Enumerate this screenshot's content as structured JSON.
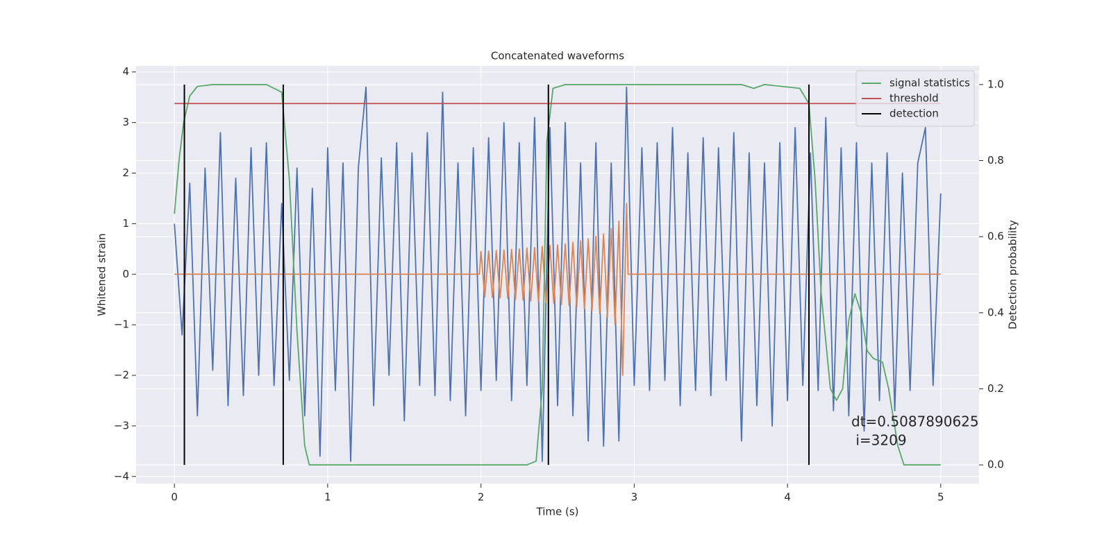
{
  "chart_data": {
    "type": "line",
    "title": "Concatenated waveforms",
    "xlabel": "Time (s)",
    "ylabel": "Whitened strain",
    "y2label": "Detection probability",
    "xlim": [
      -0.25,
      5.25
    ],
    "ylim": [
      -4.14,
      4.12
    ],
    "y2lim": [
      -0.049,
      1.049
    ],
    "xticks": [
      0,
      1,
      2,
      3,
      4,
      5
    ],
    "yticks": [
      {
        "value": -4,
        "label": "−4"
      },
      {
        "value": -3,
        "label": "−3"
      },
      {
        "value": -2,
        "label": "−2"
      },
      {
        "value": -1,
        "label": "−1"
      },
      0,
      1,
      2,
      3,
      4
    ],
    "y2ticks": [
      {
        "value": 0,
        "label": "0.0"
      },
      0.2,
      0.4,
      0.6,
      0.8,
      {
        "value": 1,
        "label": "1.0"
      }
    ],
    "grid": true,
    "legend": "upper right",
    "annotation": [
      "dt=0.5087890625",
      " i=3209"
    ],
    "series": [
      {
        "color": "#4c72b0",
        "axis": "y",
        "x": [
          0,
          0.05,
          0.1,
          0.15,
          0.2,
          0.25,
          0.3,
          0.35,
          0.4,
          0.45,
          0.5,
          0.55,
          0.6,
          0.65,
          0.7,
          0.75,
          0.8,
          0.85,
          0.9,
          0.95,
          1,
          1.05,
          1.1,
          1.15,
          1.2,
          1.25,
          1.3,
          1.35,
          1.4,
          1.45,
          1.5,
          1.55,
          1.6,
          1.65,
          1.7,
          1.75,
          1.8,
          1.85,
          1.9,
          1.95,
          2,
          2.05,
          2.1,
          2.15,
          2.2,
          2.25,
          2.3,
          2.35,
          2.4,
          2.45,
          2.5,
          2.55,
          2.6,
          2.65,
          2.7,
          2.75,
          2.8,
          2.85,
          2.9,
          2.95,
          3,
          3.05,
          3.1,
          3.15,
          3.2,
          3.25,
          3.3,
          3.35,
          3.4,
          3.45,
          3.5,
          3.55,
          3.6,
          3.65,
          3.7,
          3.75,
          3.8,
          3.85,
          3.9,
          3.95,
          4,
          4.05,
          4.1,
          4.15,
          4.2,
          4.25,
          4.3,
          4.35,
          4.4,
          4.45,
          4.5,
          4.55,
          4.6,
          4.65,
          4.7,
          4.75,
          4.8,
          4.85,
          4.9,
          4.95,
          5
        ],
        "values": [
          1.0,
          -1.2,
          1.8,
          -2.8,
          2.1,
          -1.9,
          2.8,
          -2.6,
          1.9,
          -2.4,
          2.5,
          -2.0,
          2.6,
          -2.2,
          1.4,
          -2.1,
          2.1,
          -2.8,
          1.7,
          -3.6,
          2.5,
          -2.3,
          2.2,
          -3.7,
          2.1,
          3.7,
          -2.6,
          2.3,
          -2.0,
          2.6,
          -2.9,
          2.4,
          -2.2,
          2.8,
          -2.4,
          3.6,
          -2.5,
          2.2,
          -2.8,
          2.5,
          -2.3,
          2.7,
          -2.1,
          3.0,
          -2.5,
          2.6,
          -2.2,
          3.1,
          -3.7,
          2.9,
          -2.6,
          3.0,
          -2.8,
          2.2,
          -3.3,
          2.6,
          -3.4,
          2.2,
          -3.3,
          3.7,
          -2.2,
          2.5,
          -2.3,
          2.6,
          -2.1,
          2.9,
          -2.6,
          2.4,
          -2.3,
          2.7,
          -2.4,
          2.5,
          -2.1,
          2.8,
          -3.3,
          2.4,
          -2.6,
          2.2,
          -3.0,
          2.6,
          -2.5,
          2.9,
          -2.2,
          2.4,
          -2.3,
          3.1,
          -2.7,
          2.5,
          -2.8,
          2.6,
          -3.1,
          2.2,
          -2.5,
          2.4,
          -2.7,
          2.0,
          -2.3,
          2.2,
          2.9,
          -2.2,
          1.6
        ]
      },
      {
        "color": "#dd8452",
        "axis": "y",
        "x": [
          0,
          1.99,
          2.0,
          2.025,
          2.05,
          2.075,
          2.1,
          2.125,
          2.15,
          2.175,
          2.2,
          2.225,
          2.25,
          2.275,
          2.3,
          2.325,
          2.35,
          2.375,
          2.4,
          2.425,
          2.45,
          2.475,
          2.5,
          2.525,
          2.55,
          2.575,
          2.6,
          2.625,
          2.65,
          2.675,
          2.7,
          2.725,
          2.75,
          2.775,
          2.8,
          2.825,
          2.85,
          2.875,
          2.9,
          2.925,
          2.95,
          2.96,
          5
        ],
        "values": [
          0,
          0,
          0.45,
          -0.45,
          0.46,
          -0.46,
          0.47,
          -0.47,
          0.48,
          -0.48,
          0.49,
          -0.5,
          0.5,
          -0.51,
          0.52,
          -0.53,
          0.53,
          -0.54,
          0.55,
          -0.56,
          0.57,
          -0.57,
          0.58,
          -0.6,
          0.6,
          -0.62,
          0.63,
          -0.65,
          0.66,
          -0.68,
          0.7,
          -0.72,
          0.75,
          -0.78,
          0.8,
          -0.85,
          0.9,
          -1.0,
          1.05,
          -2.0,
          1.4,
          0,
          0
        ]
      },
      {
        "name": "signal statistics",
        "color": "#55a868",
        "axis": "y2",
        "x": [
          0,
          0.03,
          0.06,
          0.1,
          0.15,
          0.25,
          0.6,
          0.7,
          0.75,
          0.8,
          0.85,
          0.88,
          1.0,
          2.3,
          2.36,
          2.4,
          2.43,
          2.47,
          2.55,
          3.7,
          3.78,
          3.85,
          4.08,
          4.14,
          4.18,
          4.22,
          4.28,
          4.32,
          4.36,
          4.4,
          4.44,
          4.48,
          4.52,
          4.56,
          4.62,
          4.66,
          4.72,
          4.76,
          4.8,
          5.0
        ],
        "values": [
          0.66,
          0.8,
          0.9,
          0.97,
          0.995,
          1,
          1,
          0.98,
          0.75,
          0.35,
          0.05,
          0,
          0,
          0,
          0.01,
          0.2,
          0.85,
          0.99,
          1,
          1,
          0.99,
          1,
          0.99,
          0.95,
          0.75,
          0.45,
          0.2,
          0.17,
          0.2,
          0.38,
          0.45,
          0.4,
          0.3,
          0.28,
          0.27,
          0.2,
          0.05,
          0,
          0,
          0
        ]
      },
      {
        "name": "threshold",
        "color": "#c44e52",
        "axis": "y2",
        "x": [
          0,
          5
        ],
        "values": [
          0.95,
          0.95
        ]
      },
      {
        "name": "detection",
        "color": "#000000",
        "axis": "y2",
        "style": "vlines",
        "x": [
          0.065,
          0.71,
          2.44,
          4.14
        ],
        "ymin": 0,
        "ymax": 1
      }
    ]
  }
}
